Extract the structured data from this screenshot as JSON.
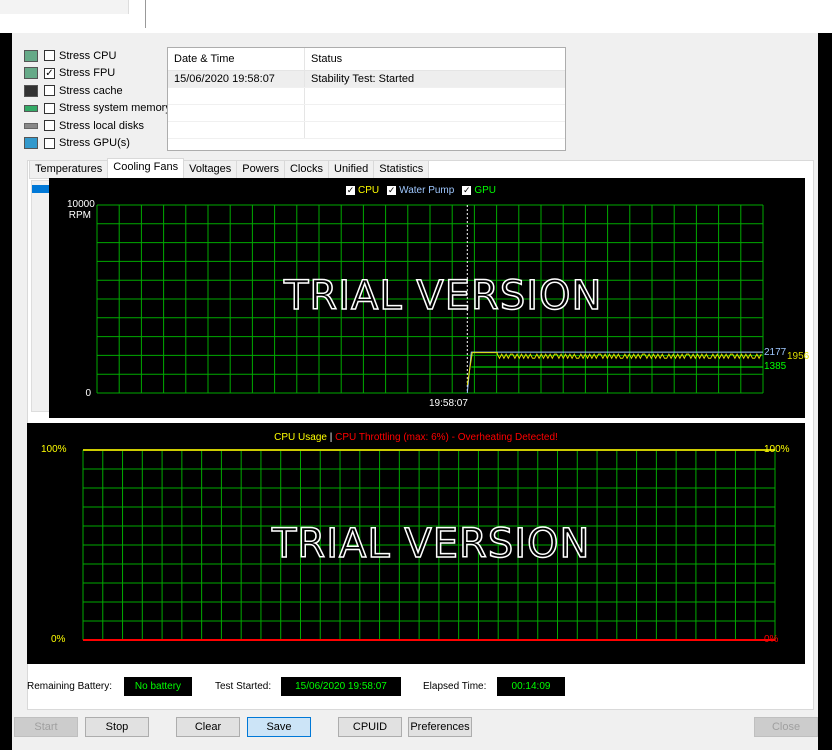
{
  "stress_options": [
    {
      "label": "Stress CPU",
      "checked": false,
      "icon": "cpu-icon"
    },
    {
      "label": "Stress FPU",
      "checked": true,
      "icon": "fpu-icon"
    },
    {
      "label": "Stress cache",
      "checked": false,
      "icon": "cache-icon"
    },
    {
      "label": "Stress system memory",
      "checked": false,
      "icon": "memory-icon"
    },
    {
      "label": "Stress local disks",
      "checked": false,
      "icon": "disk-icon"
    },
    {
      "label": "Stress GPU(s)",
      "checked": false,
      "icon": "gpu-icon"
    }
  ],
  "log": {
    "headers": [
      "Date & Time",
      "Status"
    ],
    "rows": [
      [
        "15/06/2020 19:58:07",
        "Stability Test: Started"
      ]
    ]
  },
  "tabs": [
    "Temperatures",
    "Cooling Fans",
    "Voltages",
    "Powers",
    "Clocks",
    "Unified",
    "Statistics"
  ],
  "active_tab": "Cooling Fans",
  "fan_chart": {
    "legend": [
      {
        "label": "CPU",
        "color": "#ffff00"
      },
      {
        "label": "Water Pump",
        "color": "#9fc8ff"
      },
      {
        "label": "GPU",
        "color": "#00ff00"
      }
    ],
    "ymax_label": "10000",
    "yunit": "RPM",
    "ymin_label": "0",
    "x_label": "19:58:07",
    "watermark": "TRIAL VERSION",
    "values": {
      "water_pump": "2177",
      "cpu": "1956",
      "gpu": "1385"
    }
  },
  "cpu_chart": {
    "title_usage": "CPU Usage",
    "separator": "|",
    "title_throttle": "CPU Throttling (max: 6%) - Overheating Detected!",
    "left_max": "100%",
    "left_min": "0%",
    "right_max": "100%",
    "right_min": "0%",
    "watermark": "TRIAL VERSION"
  },
  "status": {
    "battery_label": "Remaining Battery:",
    "battery": "No battery",
    "started_label": "Test Started:",
    "started": "15/06/2020 19:58:07",
    "elapsed_label": "Elapsed Time:",
    "elapsed": "00:14:09"
  },
  "buttons": {
    "start": "Start",
    "stop": "Stop",
    "clear": "Clear",
    "save": "Save",
    "cpuid": "CPUID",
    "preferences": "Preferences",
    "close": "Close"
  }
}
